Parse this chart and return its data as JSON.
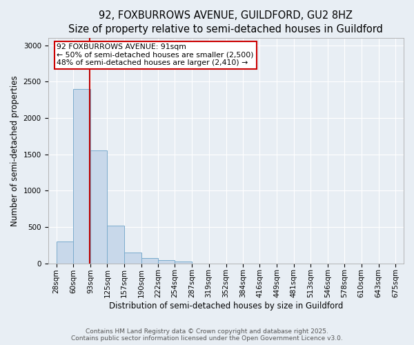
{
  "title_line1": "92, FOXBURROWS AVENUE, GUILDFORD, GU2 8HZ",
  "title_line2": "Size of property relative to semi-detached houses in Guildford",
  "xlabel": "Distribution of semi-detached houses by size in Guildford",
  "ylabel": "Number of semi-detached properties",
  "footer_line1": "Contains HM Land Registry data © Crown copyright and database right 2025.",
  "footer_line2": "Contains public sector information licensed under the Open Government Licence v3.0.",
  "annotation_line1": "92 FOXBURROWS AVENUE: 91sqm",
  "annotation_line2": "← 50% of semi-detached houses are smaller (2,500)",
  "annotation_line3": "48% of semi-detached houses are larger (2,410) →",
  "bar_edges": [
    28,
    60,
    93,
    125,
    157,
    190,
    222,
    254,
    287,
    319,
    352,
    384,
    416,
    449,
    481,
    513,
    546,
    578,
    610,
    643,
    675
  ],
  "bar_heights": [
    300,
    2400,
    1550,
    520,
    150,
    70,
    40,
    25,
    0,
    0,
    0,
    0,
    0,
    0,
    0,
    0,
    0,
    0,
    0,
    0
  ],
  "bar_color": "#c8d8ea",
  "bar_edge_color": "#7aabcc",
  "vline_color": "#bb0000",
  "vline_x": 91,
  "annotation_box_edgecolor": "#cc0000",
  "ylim": [
    0,
    3100
  ],
  "yticks": [
    0,
    500,
    1000,
    1500,
    2000,
    2500,
    3000
  ],
  "background_color": "#e8eef4",
  "plot_bg_color": "#e8eef4",
  "grid_color": "#ffffff",
  "title_fontsize": 10.5,
  "subtitle_fontsize": 9.5,
  "axis_label_fontsize": 8.5,
  "tick_fontsize": 7.5,
  "footer_fontsize": 6.5
}
